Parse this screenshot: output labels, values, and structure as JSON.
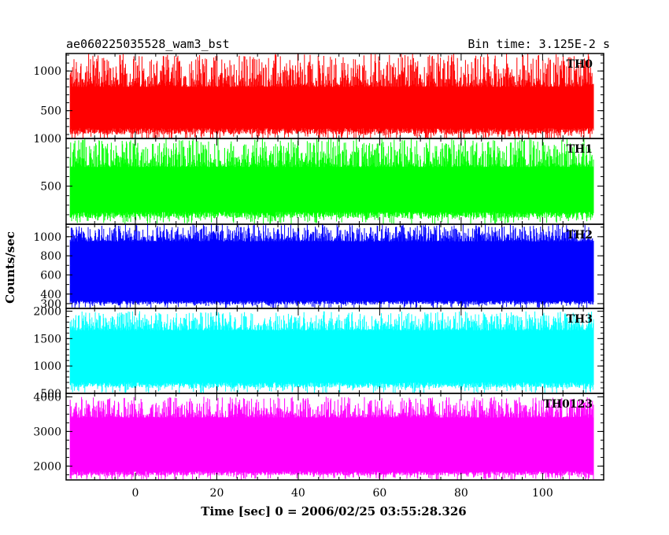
{
  "chart_data": {
    "type": "line",
    "title_left": "ae060225035528_wam3_bst",
    "title_right": "Bin time: 3.125E-2 s",
    "xlabel": "Time [sec] 0 = 2006/02/25 03:55:28.326",
    "ylabel": "Counts/sec",
    "xlim": [
      -17,
      115
    ],
    "data_range": [
      -16,
      112.5
    ],
    "x_ticks": [
      0,
      20,
      40,
      60,
      80,
      100
    ],
    "grid": false,
    "panels": [
      {
        "name": "TH0",
        "color": "#ff0000",
        "ylim": [
          150,
          1220
        ],
        "y_ticks": [
          500,
          1000
        ],
        "range": [
          120,
          1220
        ],
        "base_low": 280,
        "base_high": 800
      },
      {
        "name": "TH1",
        "color": "#00ff00",
        "ylim": [
          100,
          1000
        ],
        "y_ticks": [
          500,
          1000
        ],
        "range": [
          100,
          1000
        ],
        "base_low": 230,
        "base_high": 700
      },
      {
        "name": "TH2",
        "color": "#0000ff",
        "ylim": [
          250,
          1130
        ],
        "y_ticks": [
          300,
          400,
          600,
          800,
          1000
        ],
        "range": [
          250,
          1130
        ],
        "base_low": 330,
        "base_high": 950
      },
      {
        "name": "TH3",
        "color": "#00ffff",
        "ylim": [
          500,
          2050
        ],
        "y_ticks": [
          500,
          1000,
          1500,
          2000
        ],
        "range": [
          500,
          2000
        ],
        "base_low": 700,
        "base_high": 1650
      },
      {
        "name": "TH0123",
        "color": "#ff00ff",
        "ylim": [
          1600,
          4100
        ],
        "y_ticks": [
          2000,
          3000,
          4000
        ],
        "range": [
          1600,
          4000
        ],
        "base_low": 1850,
        "base_high": 3400
      }
    ]
  }
}
